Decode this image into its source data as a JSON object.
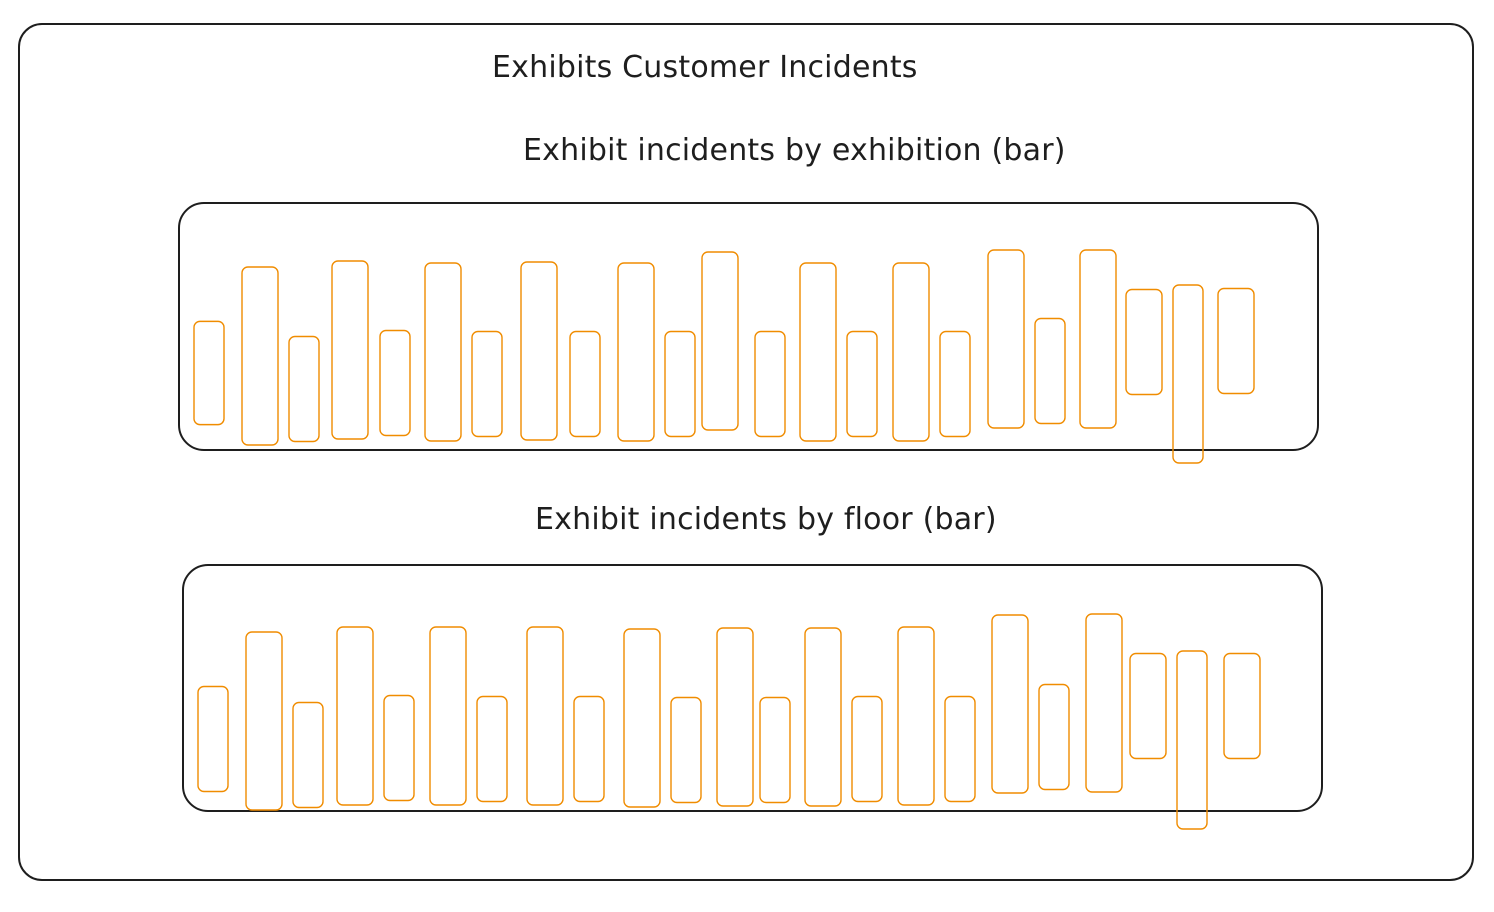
{
  "page": {
    "title": "Exhibits Customer Incidents"
  },
  "charts": [
    {
      "title": "Exhibit incidents by exhibition (bar)",
      "bar_color": "#f08c00"
    },
    {
      "title": "Exhibit incidents by floor (bar)",
      "bar_color": "#f08c00"
    }
  ],
  "chart_data": [
    {
      "type": "bar",
      "title": "Exhibit incidents by exhibition (bar)",
      "series": [
        {
          "values": [
            0.58,
            1.0,
            0.59,
            1.0,
            0.59,
            1.0,
            0.59,
            1.0,
            0.59,
            1.0,
            0.59,
            1.0,
            0.59,
            1.0,
            0.59,
            1.0,
            0.59,
            1.0,
            0.59,
            1.0,
            0.59,
            1.0,
            0.59
          ]
        }
      ]
    },
    {
      "type": "bar",
      "title": "Exhibit incidents by floor (bar)",
      "series": [
        {
          "values": [
            0.59,
            1.0,
            0.59,
            1.0,
            0.59,
            1.0,
            0.59,
            1.0,
            0.59,
            1.0,
            0.59,
            1.0,
            0.59,
            1.0,
            0.59,
            1.0,
            0.59,
            1.0,
            0.59,
            1.0,
            0.59,
            1.0,
            0.59
          ]
        }
      ]
    }
  ]
}
